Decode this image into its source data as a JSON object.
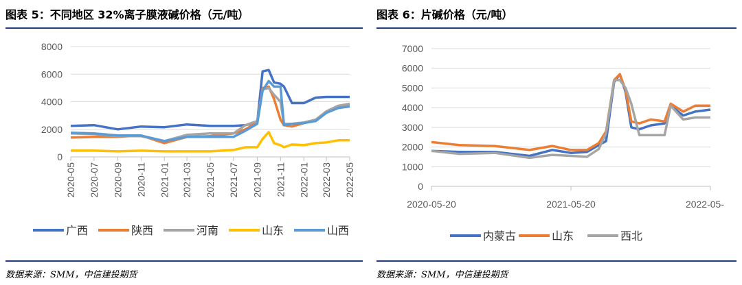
{
  "charts": [
    {
      "title": "图表 5：不同地区 32%离子膜液碱价格（元/吨）",
      "source": "数据来源：SMM，中信建投期货"
    },
    {
      "title": "图表 6：片碱价格（元/吨）",
      "source": "数据来源：SMM，中信建投期货"
    }
  ],
  "chart_data": [
    {
      "type": "line",
      "title": "不同地区 32%离子膜液碱价格（元/吨）",
      "ylim": [
        0,
        8000
      ],
      "yticks": [
        0,
        2000,
        4000,
        6000,
        8000
      ],
      "xticks": [
        "2020-05",
        "2020-07",
        "2020-09",
        "2020-11",
        "2021-01",
        "2021-03",
        "2021-05",
        "2021-07",
        "2021-09",
        "2021-11",
        "2022-01",
        "2022-03",
        "2022-05"
      ],
      "grid": true,
      "legend": "bottom",
      "x": [
        "2020-05-01",
        "2020-07-01",
        "2020-09-01",
        "2020-11-01",
        "2021-01-01",
        "2021-03-01",
        "2021-05-01",
        "2021-07-01",
        "2021-08-01",
        "2021-09-01",
        "2021-09-15",
        "2021-10-01",
        "2021-10-15",
        "2021-11-01",
        "2021-11-10",
        "2021-12-01",
        "2022-01-01",
        "2022-02-01",
        "2022-03-01",
        "2022-04-01",
        "2022-05-01"
      ],
      "series": [
        {
          "name": "广西",
          "color": "#4472c4",
          "values": [
            2250,
            2300,
            2000,
            2200,
            2150,
            2350,
            2250,
            2250,
            2300,
            2500,
            6200,
            6300,
            5400,
            5300,
            5100,
            3900,
            3900,
            4300,
            4350,
            4350,
            4350
          ]
        },
        {
          "name": "陕西",
          "color": "#ed7d31",
          "values": [
            1400,
            1450,
            1450,
            1550,
            1000,
            1450,
            1500,
            1700,
            2000,
            2500,
            5000,
            5100,
            4200,
            2700,
            2300,
            2200,
            2450,
            2700,
            3300,
            3700,
            3750
          ]
        },
        {
          "name": "河南",
          "color": "#a5a5a5",
          "values": [
            1700,
            1650,
            1500,
            1500,
            1150,
            1600,
            1700,
            1700,
            2300,
            2600,
            4900,
            5000,
            4500,
            4000,
            2400,
            2400,
            2500,
            2700,
            3300,
            3700,
            3850
          ]
        },
        {
          "name": "山东",
          "color": "#ffc000",
          "values": [
            450,
            450,
            400,
            450,
            400,
            400,
            400,
            500,
            700,
            700,
            1300,
            1800,
            1000,
            850,
            700,
            900,
            850,
            1000,
            1050,
            1200,
            1200
          ]
        },
        {
          "name": "山西",
          "color": "#5b9bd5",
          "values": [
            1750,
            1700,
            1550,
            1550,
            1150,
            1450,
            1450,
            1450,
            1900,
            2400,
            4800,
            5500,
            5100,
            5100,
            2300,
            2400,
            2450,
            2600,
            3200,
            3550,
            3650
          ]
        }
      ]
    },
    {
      "type": "line",
      "title": "片碱价格（元/吨）",
      "ylim": [
        0,
        7000
      ],
      "yticks": [
        0,
        1000,
        2000,
        3000,
        4000,
        5000,
        6000,
        7000
      ],
      "xticks": [
        "2020-05-20",
        "2021-05-20",
        "2022-05-"
      ],
      "grid": true,
      "legend": "bottom",
      "x": [
        "2020-05-20",
        "2020-08-01",
        "2020-11-01",
        "2021-02-01",
        "2021-04-01",
        "2021-05-20",
        "2021-07-01",
        "2021-08-01",
        "2021-08-20",
        "2021-09-10",
        "2021-09-25",
        "2021-10-10",
        "2021-10-25",
        "2021-11-15",
        "2021-12-15",
        "2022-01-20",
        "2022-02-05",
        "2022-03-10",
        "2022-04-10",
        "2022-05-20"
      ],
      "series": [
        {
          "name": "内蒙古",
          "color": "#4472c4",
          "values": [
            1800,
            1750,
            1750,
            1550,
            1850,
            1700,
            1750,
            2100,
            2300,
            5300,
            5700,
            4800,
            3000,
            2900,
            3100,
            3200,
            4100,
            3600,
            3800,
            3900
          ]
        },
        {
          "name": "山东",
          "color": "#ed7d31",
          "values": [
            2250,
            2100,
            2050,
            1850,
            2050,
            1850,
            1850,
            2200,
            2800,
            5400,
            5700,
            4900,
            3300,
            3200,
            3400,
            3300,
            4200,
            3800,
            4100,
            4100
          ]
        },
        {
          "name": "西北",
          "color": "#a5a5a5",
          "values": [
            1800,
            1650,
            1700,
            1450,
            1600,
            1550,
            1500,
            1900,
            2700,
            5400,
            5400,
            5000,
            4200,
            2600,
            2600,
            2600,
            4100,
            3400,
            3500,
            3500
          ]
        }
      ]
    }
  ]
}
